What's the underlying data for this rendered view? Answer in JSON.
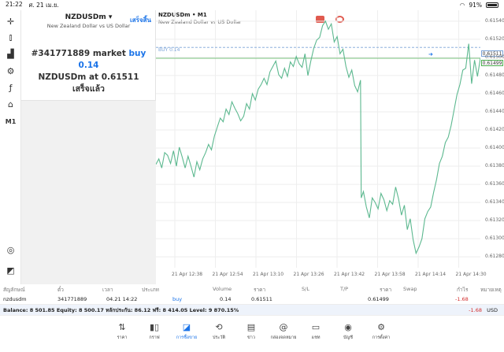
{
  "status_bar": {
    "time": "21:22",
    "date": "ศ. 21 เม.ย.",
    "battery": "91%"
  },
  "toolbar": {
    "items": [
      {
        "name": "crosshair-icon",
        "glyph": "✛"
      },
      {
        "name": "indicators-icon",
        "glyph": "⫾"
      },
      {
        "name": "chart-type-icon",
        "glyph": "▟"
      },
      {
        "name": "settings-sliders-icon",
        "glyph": "⚙"
      },
      {
        "name": "function-icon",
        "glyph": "ƒ"
      },
      {
        "name": "shapes-icon",
        "glyph": "⌂"
      },
      {
        "name": "timeframe-label",
        "glyph": "M1"
      },
      {
        "name": "zoom-icon",
        "glyph": "◎"
      },
      {
        "name": "trade-icon",
        "glyph": "◩"
      }
    ]
  },
  "order_panel": {
    "symbol": "NZDUSDm",
    "done_button": "เสร็จสิ้น",
    "description": "New Zealand Dollar vs US Dollar",
    "message_line1_prefix": "#341771889 market",
    "message_line1_action": "buy 0.14",
    "message_line2_prefix": "NZDUSDm at",
    "message_line2_price": "0.61511",
    "message_line3": "เสร็จแล้ว"
  },
  "chart": {
    "title": "NZDUSDm • M1",
    "subtitle": "New Zealand Dollar vs US Dollar",
    "buy_line_label": "BUY 0.14",
    "buy_price_tag": "0.61511",
    "bid_price_tag": "0.61499",
    "y_ticks": [
      "0.61540",
      "0.61520",
      "0.61500",
      "0.61480",
      "0.61460",
      "0.61440",
      "0.61420",
      "0.61400",
      "0.61380",
      "0.61360",
      "0.61340",
      "0.61320",
      "0.61300",
      "0.61280"
    ],
    "x_ticks": [
      "21 Apr 12:38",
      "21 Apr 12:54",
      "21 Apr 13:10",
      "21 Apr 13:26",
      "21 Apr 13:42",
      "21 Apr 13:58",
      "21 Apr 14:14",
      "21 Apr 14:30"
    ],
    "colors": {
      "line": "#5cb88f",
      "buy_line": "#7aa3d8",
      "bid_line": "#4caf50"
    }
  },
  "chart_data": {
    "type": "line",
    "ylim": [
      0.61268,
      0.61552
    ],
    "xlim": [
      0,
      222
    ],
    "buy_level": 0.61511,
    "bid_level": 0.61499,
    "series": [
      {
        "x": [
          0,
          2,
          4,
          6,
          8,
          10,
          12,
          14,
          16,
          18,
          20,
          22,
          24,
          26,
          28,
          30,
          32,
          34,
          36,
          38,
          40,
          42,
          44,
          46,
          48,
          50,
          52,
          54,
          56,
          58,
          60,
          62,
          64,
          66,
          68,
          70,
          72,
          74,
          76,
          78,
          80,
          82,
          84,
          86,
          88,
          90,
          92,
          94,
          96,
          98,
          100,
          102,
          104,
          106,
          108,
          110,
          112,
          114,
          116,
          118,
          120,
          122,
          124,
          126,
          128,
          130,
          132,
          134,
          136,
          138,
          140,
          140.5,
          142,
          144,
          146,
          148,
          150,
          152,
          154,
          156,
          158,
          160,
          162,
          164,
          166,
          168,
          170,
          172,
          174,
          176,
          178,
          180,
          182,
          184,
          186,
          188,
          190,
          192,
          194,
          196,
          198,
          200,
          202,
          204,
          206,
          208,
          210,
          212,
          214,
          216,
          218,
          220,
          222
        ],
        "values": [
          0.61382,
          0.61388,
          0.61378,
          0.61395,
          0.61392,
          0.61383,
          0.61397,
          0.6138,
          0.61401,
          0.6139,
          0.61378,
          0.61391,
          0.6138,
          0.61368,
          0.61385,
          0.61376,
          0.61388,
          0.61395,
          0.61404,
          0.61398,
          0.61413,
          0.61423,
          0.61433,
          0.61429,
          0.61443,
          0.61437,
          0.61451,
          0.61444,
          0.61438,
          0.6143,
          0.61435,
          0.61449,
          0.61443,
          0.6146,
          0.61453,
          0.61465,
          0.6147,
          0.61477,
          0.6147,
          0.61484,
          0.6149,
          0.61496,
          0.61481,
          0.61477,
          0.61488,
          0.61479,
          0.61495,
          0.6149,
          0.61501,
          0.61493,
          0.61489,
          0.61504,
          0.6148,
          0.61496,
          0.6151,
          0.61519,
          0.61522,
          0.61535,
          0.6154,
          0.61531,
          0.61537,
          0.61517,
          0.61523,
          0.61504,
          0.61509,
          0.6149,
          0.61478,
          0.61486,
          0.61469,
          0.61462,
          0.61475,
          0.61345,
          0.61352,
          0.61335,
          0.61323,
          0.61345,
          0.6134,
          0.61333,
          0.6135,
          0.61343,
          0.61331,
          0.61342,
          0.61338,
          0.61357,
          0.61344,
          0.61326,
          0.61337,
          0.6131,
          0.61322,
          0.61299,
          0.61284,
          0.61291,
          0.613,
          0.61322,
          0.6133,
          0.61335,
          0.61351,
          0.61365,
          0.61383,
          0.61391,
          0.61406,
          0.61412,
          0.61425,
          0.61442,
          0.61459,
          0.6147,
          0.61486,
          0.61488,
          0.61515,
          0.61471,
          0.61497,
          0.61479,
          0.61499
        ]
      }
    ]
  },
  "positions_table": {
    "headers": [
      "สัญลักษณ์",
      "ตั๋ว",
      "เวลา",
      "ประเภท",
      "Volume",
      "ราคา",
      "S/L",
      "T/P",
      "ราคา",
      "Swap",
      "กำไร",
      "หมายเหตุ"
    ],
    "rows": [
      {
        "symbol": "nzdusdm",
        "ticket": "341771889",
        "time": "04.21 14:22",
        "type": "buy",
        "volume": "0.14",
        "price": "0.61511",
        "sl": "",
        "tp": "",
        "current": "0.61499",
        "swap": "",
        "profit": "-1.68",
        "note": ""
      }
    ]
  },
  "balance_bar": {
    "text": "Balance: 8 501.85 Equity: 8 500.17 หลักประกัน: 86.12 ฟรี: 8 414.05 Level: 9 870.15%",
    "profit": "-1.68",
    "currency": "USD"
  },
  "bottom_nav": [
    {
      "name": "nav-quotes",
      "icon": "⇅",
      "label": "ราคา"
    },
    {
      "name": "nav-chart",
      "icon": "▮▯",
      "label": "กราฟ"
    },
    {
      "name": "nav-trade",
      "icon": "◪",
      "label": "การซื้อขาย",
      "active": true
    },
    {
      "name": "nav-history",
      "icon": "⟲",
      "label": "ประวัติ"
    },
    {
      "name": "nav-news",
      "icon": "▤",
      "label": "ข่าว"
    },
    {
      "name": "nav-mailbox",
      "icon": "@",
      "label": "กล่องจดหมาย"
    },
    {
      "name": "nav-chat",
      "icon": "▭",
      "label": "แชท"
    },
    {
      "name": "nav-accounts",
      "icon": "◉",
      "label": "บัญชี"
    },
    {
      "name": "nav-settings",
      "icon": "⚙",
      "label": "การตั้งค่า"
    }
  ]
}
